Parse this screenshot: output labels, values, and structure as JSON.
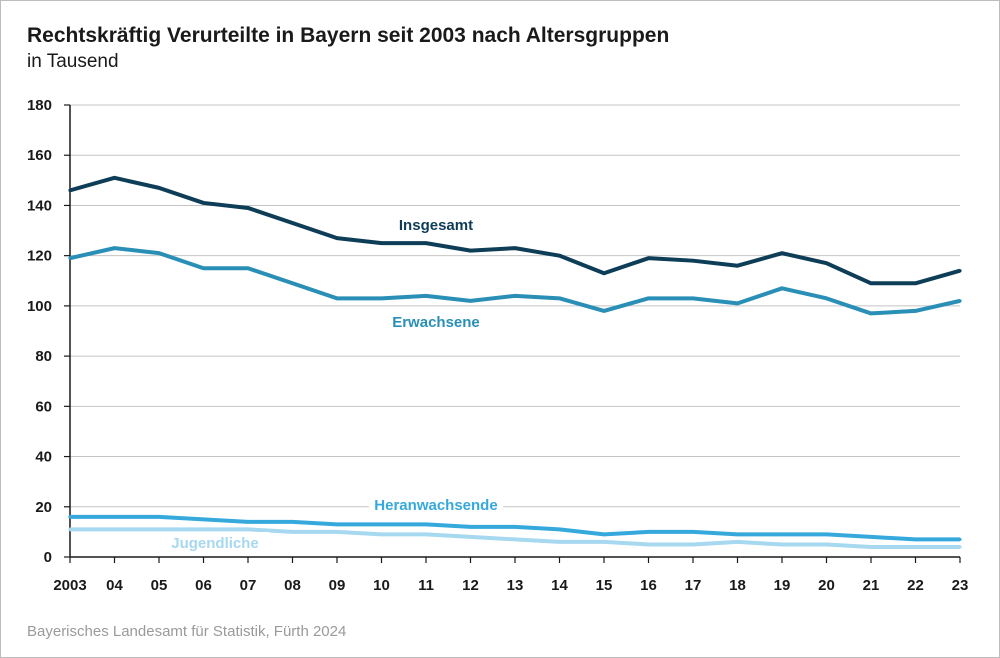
{
  "header": {
    "title": "Rechtskräftig Verurteilte in Bayern seit 2003 nach Altersgruppen",
    "subtitle": "in Tausend"
  },
  "footer": {
    "source": "Bayerisches Landesamt für Statistik, Fürth 2024"
  },
  "chart_data": {
    "type": "line",
    "title": "Rechtskräftig Verurteilte in Bayern seit 2003 nach Altersgruppen",
    "subtitle": "in Tausend",
    "xlabel": "",
    "ylabel": "",
    "x": [
      "2003",
      "04",
      "05",
      "06",
      "07",
      "08",
      "09",
      "10",
      "11",
      "12",
      "13",
      "14",
      "15",
      "16",
      "17",
      "18",
      "19",
      "20",
      "21",
      "22",
      "23"
    ],
    "ylim": [
      0,
      180
    ],
    "yticks": [
      0,
      20,
      40,
      60,
      80,
      100,
      120,
      140,
      160,
      180
    ],
    "grid": "horizontal",
    "legend": "inline labels",
    "series": [
      {
        "name": "Insgesamt",
        "color": "#0e3d57",
        "values": [
          146,
          151,
          147,
          141,
          139,
          133,
          127,
          125,
          125,
          122,
          123,
          120,
          113,
          119,
          118,
          116,
          121,
          117,
          109,
          109,
          114
        ]
      },
      {
        "name": "Erwachsene",
        "color": "#2a8fb6",
        "values": [
          119,
          123,
          121,
          115,
          115,
          109,
          103,
          103,
          104,
          102,
          104,
          103,
          98,
          103,
          103,
          101,
          107,
          103,
          97,
          98,
          102
        ]
      },
      {
        "name": "Heranwachsende",
        "color": "#36a9dc",
        "values": [
          16,
          16,
          16,
          15,
          14,
          14,
          13,
          13,
          13,
          12,
          12,
          11,
          9,
          10,
          10,
          9,
          9,
          9,
          8,
          7,
          7
        ]
      },
      {
        "name": "Jugendliche",
        "color": "#a6d8ef",
        "values": [
          11,
          11,
          11,
          11,
          11,
          10,
          10,
          9,
          9,
          8,
          7,
          6,
          6,
          5,
          5,
          6,
          5,
          5,
          4,
          4,
          4
        ]
      }
    ]
  }
}
